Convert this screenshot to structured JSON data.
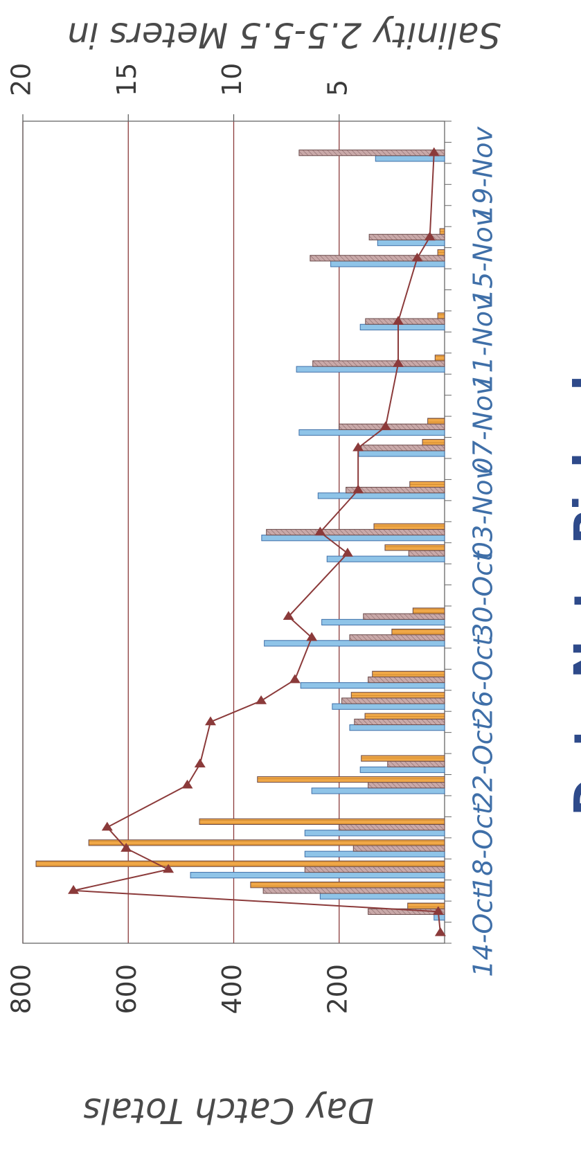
{
  "chart_data": {
    "type": "bar",
    "ylabel": "Day Catch Totals",
    "y2label": "Salinity 2.5-5.5 Meters in",
    "xlabel": "Date Nets Picked",
    "categories": [
      "14-Oct",
      null,
      null,
      null,
      "18-Oct",
      null,
      null,
      null,
      "22-Oct",
      null,
      null,
      null,
      "26-Oct",
      null,
      null,
      null,
      "30-Oct",
      null,
      null,
      null,
      "03-Nov",
      null,
      null,
      null,
      "07-Nov",
      null,
      null,
      null,
      "11-Nov",
      null,
      null,
      null,
      "15-Nov",
      null,
      null,
      null,
      "19-Nov",
      null,
      null
    ],
    "ylim": [
      0,
      800
    ],
    "yticks": [
      200,
      400,
      600,
      800
    ],
    "y2lim": [
      0,
      20
    ],
    "y2ticks": [
      5,
      10,
      15,
      20
    ],
    "grid": true,
    "series": [
      {
        "color": "#8fc4e8",
        "values": [
          null,
          20,
          236,
          482,
          265,
          265,
          null,
          252,
          160,
          null,
          180,
          213,
          273,
          null,
          342,
          233,
          null,
          null,
          223,
          347,
          null,
          240,
          null,
          163,
          276,
          null,
          null,
          281,
          null,
          160,
          null,
          null,
          216,
          127,
          null,
          null,
          null,
          131,
          null
        ]
      },
      {
        "color": "#c9a9a9",
        "values": [
          null,
          145,
          344,
          265,
          173,
          200,
          null,
          145,
          108,
          null,
          171,
          195,
          145,
          null,
          180,
          154,
          null,
          null,
          68,
          338,
          null,
          187,
          null,
          158,
          200,
          null,
          null,
          250,
          null,
          150,
          null,
          null,
          255,
          143,
          null,
          null,
          null,
          276,
          null
        ]
      },
      {
        "color": "#f0a848",
        "values": [
          null,
          70,
          368,
          775,
          675,
          465,
          null,
          355,
          158,
          null,
          151,
          177,
          137,
          null,
          100,
          60,
          null,
          null,
          113,
          134,
          null,
          66,
          null,
          42,
          32,
          null,
          null,
          18,
          null,
          13,
          null,
          null,
          13,
          9,
          null,
          null,
          null,
          null,
          null
        ]
      },
      {
        "type": "line",
        "axis": "y2",
        "color": "#8b3a3a",
        "values": [
          0.2,
          0.3,
          17.6,
          13.1,
          15.1,
          16.0,
          null,
          12.2,
          11.6,
          null,
          11.1,
          8.7,
          7.1,
          null,
          6.3,
          7.4,
          null,
          null,
          4.6,
          5.9,
          null,
          4.1,
          null,
          4.1,
          2.8,
          null,
          null,
          2.2,
          null,
          2.2,
          null,
          null,
          1.3,
          0.7,
          null,
          null,
          null,
          0.5,
          null
        ]
      }
    ]
  }
}
